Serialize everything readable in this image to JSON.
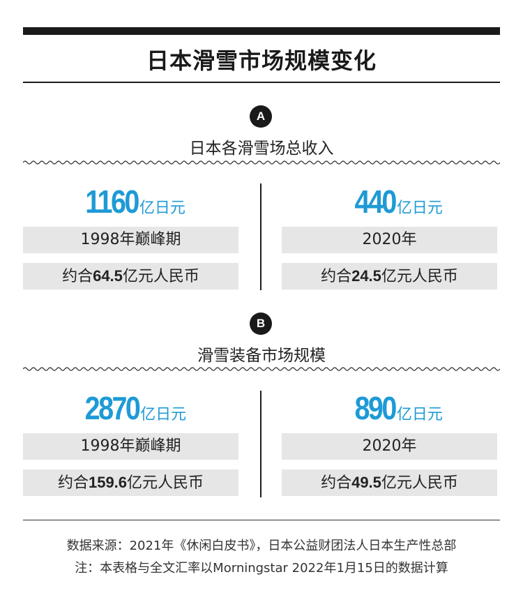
{
  "title": "日本滑雪市场规模变化",
  "sections": [
    {
      "badge": "A",
      "title": "日本各滑雪场总收入",
      "left": {
        "value": "1160",
        "unit": "亿日元",
        "period": "1998年巅峰期",
        "rmb_prefix": "约合",
        "rmb_value": "64.5",
        "rmb_suffix": "亿元人民币"
      },
      "right": {
        "value": "440",
        "unit": "亿日元",
        "period": "2020年",
        "rmb_prefix": "约合",
        "rmb_value": "24.5",
        "rmb_suffix": "亿元人民币"
      }
    },
    {
      "badge": "B",
      "title": "滑雪装备市场规模",
      "left": {
        "value": "2870",
        "unit": "亿日元",
        "period": "1998年巅峰期",
        "rmb_prefix": "约合",
        "rmb_value": "159.6",
        "rmb_suffix": "亿元人民币"
      },
      "right": {
        "value": "890",
        "unit": "亿日元",
        "period": "2020年",
        "rmb_prefix": "约合",
        "rmb_value": "49.5",
        "rmb_suffix": "亿元人民币"
      }
    }
  ],
  "footer": {
    "source": "数据来源：2021年《休闲白皮书》，日本公益财团法人日本生产性总部",
    "note": "注：本表格与全文汇率以Morningstar 2022年1月15日的数据计算"
  },
  "colors": {
    "accent": "#1e9ad6",
    "dark": "#1a1a1a",
    "box_bg": "#e6e6e6"
  }
}
